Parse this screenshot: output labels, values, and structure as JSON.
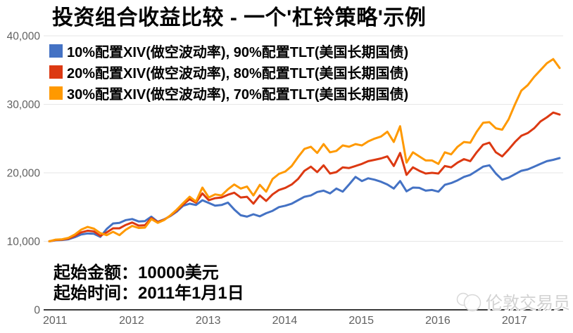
{
  "title": "投资组合收益比较 - 一个'杠铃策略'示例",
  "annotations": {
    "start_amount": "起始金额：10000美元",
    "start_date": "起始时间：2011年1月1日"
  },
  "watermark": {
    "text": "伦敦交易员"
  },
  "colors": {
    "grid": "#e6e6e6",
    "axis": "#3a3a3a",
    "tick_text": "#616161",
    "background": "#ffffff"
  },
  "chart_data": {
    "type": "line",
    "title": "投资组合收益比较 - 一个'杠铃策略'示例",
    "x_start": "2011-01",
    "x_interval": "monthly",
    "x_tick_labels": [
      "2011",
      "2012",
      "2013",
      "2014",
      "2015",
      "2016",
      "2017"
    ],
    "ylim": [
      0,
      40000
    ],
    "y_ticks": [
      {
        "value": 0,
        "label": "0"
      },
      {
        "value": 10000,
        "label": "10,000"
      },
      {
        "value": 20000,
        "label": "20,000"
      },
      {
        "value": 30000,
        "label": "30,000"
      },
      {
        "value": 40000,
        "label": "40,000"
      }
    ],
    "grid": true,
    "legend_position": "top-left",
    "series": [
      {
        "name": "10%配置XIV(做空波动率), 90%配置TLT(美国长期国债)",
        "color": "#4472C4",
        "values": [
          10000,
          10150,
          10200,
          10300,
          10600,
          11000,
          11150,
          11100,
          10650,
          11800,
          12600,
          12700,
          13100,
          13250,
          12900,
          12950,
          13600,
          12850,
          13200,
          13700,
          14350,
          15200,
          15500,
          15300,
          16000,
          15600,
          15200,
          15300,
          15650,
          14650,
          13800,
          13600,
          13950,
          13650,
          14100,
          14450,
          15000,
          15200,
          15500,
          16000,
          16500,
          16700,
          17200,
          17400,
          17000,
          17700,
          17250,
          18300,
          19400,
          18800,
          19200,
          19000,
          18700,
          18300,
          17700,
          18800,
          17300,
          17850,
          17800,
          17400,
          17500,
          17250,
          18250,
          18500,
          18900,
          19400,
          19700,
          20300,
          20900,
          21100,
          19900,
          19000,
          19300,
          19800,
          20300,
          20500,
          20900,
          21300,
          21700,
          21900,
          22150
        ]
      },
      {
        "name": "20%配置XIV(做空波动率), 80%配置TLT(美国长期国债)",
        "color": "#DC3912",
        "values": [
          10000,
          10200,
          10250,
          10400,
          10800,
          11300,
          11550,
          11450,
          10800,
          11300,
          11900,
          11900,
          12400,
          12750,
          12300,
          12350,
          13400,
          12800,
          13150,
          13750,
          14500,
          15400,
          16150,
          15650,
          17000,
          16000,
          16300,
          16400,
          16800,
          17100,
          16400,
          16500,
          15500,
          16700,
          15900,
          16850,
          17500,
          17800,
          18300,
          19100,
          20300,
          20900,
          20100,
          21100,
          19900,
          20100,
          20800,
          20700,
          21000,
          21300,
          21700,
          21900,
          22100,
          22400,
          21000,
          22900,
          19700,
          20800,
          20300,
          19900,
          20000,
          19900,
          21000,
          20800,
          21500,
          22000,
          21700,
          23000,
          24100,
          24400,
          23000,
          22400,
          23400,
          24500,
          25400,
          25800,
          26500,
          27500,
          28100,
          28800,
          28500
        ]
      },
      {
        "name": "30%配置XIV(做空波动率), 70%配置TLT(美国长期国债)",
        "color": "#FF9900",
        "values": [
          10000,
          10250,
          10300,
          10500,
          11000,
          11700,
          12100,
          11850,
          11200,
          10900,
          11400,
          10900,
          11700,
          12250,
          11950,
          12000,
          13250,
          12700,
          13100,
          13800,
          14650,
          15600,
          16500,
          15800,
          17850,
          16400,
          16850,
          16700,
          17600,
          18300,
          17700,
          18000,
          16700,
          18250,
          17250,
          19100,
          19850,
          20200,
          21000,
          22300,
          23500,
          23800,
          22900,
          24200,
          23000,
          23200,
          24000,
          23800,
          24200,
          24000,
          24600,
          25000,
          25300,
          26000,
          24500,
          26800,
          21500,
          23000,
          22400,
          21800,
          21800,
          21300,
          23000,
          22700,
          23800,
          24500,
          24400,
          26000,
          27300,
          27400,
          26500,
          26300,
          27800,
          30000,
          32000,
          32800,
          34000,
          35000,
          36000,
          36600,
          35300
        ]
      }
    ]
  }
}
